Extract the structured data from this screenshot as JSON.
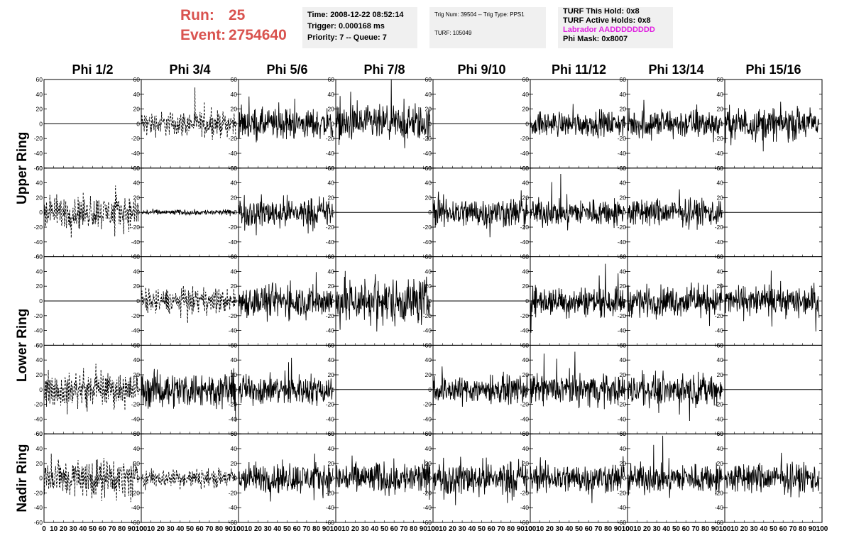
{
  "run": {
    "run_label": "Run:",
    "run_value": "25",
    "event_label": "Event:",
    "event_value": "2754640"
  },
  "info_time": {
    "time": "Time: 2008-12-22 08:52:14",
    "trigger": "Trigger: 0.000168 ms",
    "priority": "Priority: 7 -- Queue: 7"
  },
  "info_trig": {
    "trig": "Trig Num: 39504 -- Trig Type: PPS1",
    "turf": "TURF: 105049"
  },
  "info_turf": {
    "this_hold": "TURF This Hold: 0x8",
    "active_holds": "TURF Active Holds: 0x8",
    "labrador": "Labrador AADDDDDDDD",
    "phi_mask": "Phi Mask: 0x8007"
  },
  "columns": [
    "Phi 1/2",
    "Phi 3/4",
    "Phi 5/6",
    "Phi 7/8",
    "Phi 9/10",
    "Phi 11/12",
    "Phi 13/14",
    "Phi 15/16"
  ],
  "ring_labels": [
    "Upper Ring",
    "Lower Ring",
    "Nadir Ring"
  ],
  "y_ticks": [
    "60",
    "40",
    "20",
    "0",
    "-20",
    "-40",
    "-60"
  ],
  "x_ticks": [
    "0",
    "10",
    "20",
    "30",
    "40",
    "50",
    "60",
    "70",
    "80",
    "90",
    "100"
  ],
  "colors": {
    "header_red": "#d9534f",
    "labrador_magenta": "#e020e0",
    "info_bg": "#f0f0f0",
    "trace": "#000000"
  },
  "chart_data": {
    "type": "line",
    "title": "",
    "xlim": [
      0,
      100
    ],
    "ylim": [
      -60,
      60
    ],
    "x_tick_values": [
      0,
      10,
      20,
      30,
      40,
      50,
      60,
      70,
      80,
      90,
      100
    ],
    "y_tick_values": [
      -60,
      -40,
      -20,
      0,
      20,
      40,
      60
    ],
    "rows": 5,
    "cols": 8,
    "panels": [
      [
        {
          "mode": "flat"
        },
        {
          "mode": "dash",
          "amp": 9
        },
        {
          "mode": "noise",
          "amp": 11
        },
        {
          "mode": "noise",
          "amp": 13
        },
        {
          "mode": "flat"
        },
        {
          "mode": "noise",
          "amp": 9
        },
        {
          "mode": "noise",
          "amp": 11
        },
        {
          "mode": "noise",
          "amp": 12
        }
      ],
      [
        {
          "mode": "dash",
          "amp": 12
        },
        {
          "mode": "noise",
          "amp": 2
        },
        {
          "mode": "noise",
          "amp": 11
        },
        {
          "mode": "flat"
        },
        {
          "mode": "noise",
          "amp": 11
        },
        {
          "mode": "noise",
          "amp": 10
        },
        {
          "mode": "noise",
          "amp": 10
        },
        {
          "mode": "flat"
        }
      ],
      [
        {
          "mode": "flat"
        },
        {
          "mode": "dash",
          "amp": 9
        },
        {
          "mode": "noise",
          "amp": 12
        },
        {
          "mode": "noise",
          "amp": 17
        },
        {
          "mode": "flat"
        },
        {
          "mode": "noise",
          "amp": 11
        },
        {
          "mode": "noise",
          "amp": 11
        },
        {
          "mode": "noise",
          "amp": 11
        }
      ],
      [
        {
          "mode": "dash",
          "amp": 12
        },
        {
          "mode": "noise",
          "amp": 13
        },
        {
          "mode": "noise",
          "amp": 11
        },
        {
          "mode": "flat"
        },
        {
          "mode": "noise",
          "amp": 10
        },
        {
          "mode": "noise",
          "amp": 11
        },
        {
          "mode": "noise",
          "amp": 11
        },
        {
          "mode": "flat"
        }
      ],
      [
        {
          "mode": "dash",
          "amp": 14
        },
        {
          "mode": "dash",
          "amp": 7
        },
        {
          "mode": "noise",
          "amp": 11
        },
        {
          "mode": "noise",
          "amp": 12
        },
        {
          "mode": "noise",
          "amp": 13
        },
        {
          "mode": "noise",
          "amp": 11
        },
        {
          "mode": "noise",
          "amp": 11
        },
        {
          "mode": "noise",
          "amp": 11
        }
      ]
    ]
  }
}
